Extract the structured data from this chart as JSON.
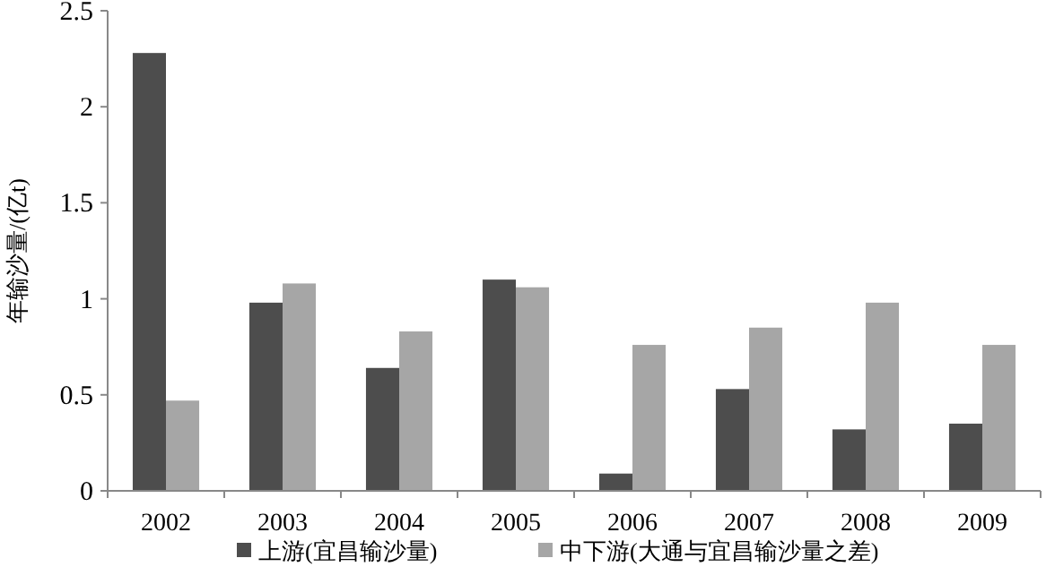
{
  "chart_data": {
    "type": "bar",
    "ylabel": "年输沙量/(亿t)",
    "categories": [
      "2002",
      "2003",
      "2004",
      "2005",
      "2006",
      "2007",
      "2008",
      "2009"
    ],
    "series": [
      {
        "name": "上游(宜昌输沙量)",
        "color": "#4d4d4d",
        "values": [
          2.28,
          0.98,
          0.64,
          1.1,
          0.09,
          0.53,
          0.32,
          0.35
        ]
      },
      {
        "name": "中下游(大通与宜昌输沙量之差)",
        "color": "#a6a6a6",
        "values": [
          0.47,
          1.08,
          0.83,
          1.06,
          0.76,
          0.85,
          0.98,
          0.76
        ]
      }
    ],
    "ylim": [
      0,
      2.5
    ],
    "yticks": [
      0,
      0.5,
      1,
      1.5,
      2,
      2.5
    ],
    "grid": false,
    "legend": "bottom"
  }
}
